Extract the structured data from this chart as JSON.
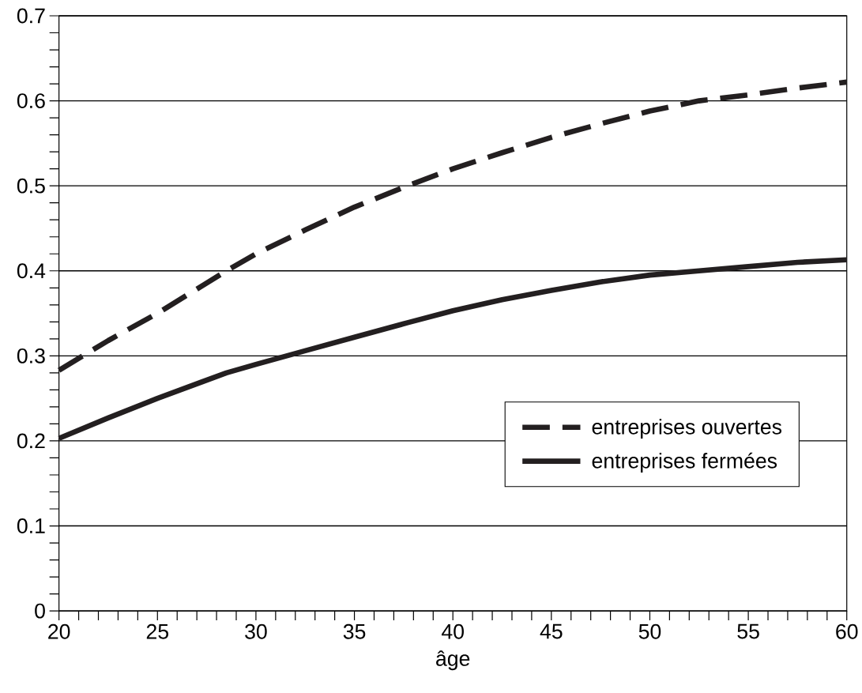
{
  "chart_data": {
    "type": "line",
    "xlabel": "âge",
    "x": [
      20,
      22.5,
      25,
      28.5,
      30,
      32.5,
      35,
      37.7,
      40,
      42.5,
      45,
      47.5,
      50,
      52.5,
      55,
      57.5,
      60
    ],
    "series": [
      {
        "name": "entreprises ouvertes",
        "color": "#231f20",
        "line_style": "dashed",
        "values": [
          0.283,
          0.318,
          0.35,
          0.4,
          0.42,
          0.448,
          0.475,
          0.5,
          0.52,
          0.539,
          0.557,
          0.573,
          0.588,
          0.6,
          0.607,
          0.615,
          0.622
        ]
      },
      {
        "name": "entreprises fermées",
        "color": "#231f20",
        "line_style": "solid",
        "values": [
          0.203,
          0.227,
          0.25,
          0.28,
          0.29,
          0.306,
          0.322,
          0.339,
          0.353,
          0.366,
          0.377,
          0.387,
          0.395,
          0.4,
          0.405,
          0.41,
          0.413
        ]
      }
    ],
    "xlim": [
      20,
      60
    ],
    "xticks": [
      20,
      {
        "value": 21,
        "label": null
      },
      {
        "value": 22,
        "label": null
      },
      {
        "value": 23,
        "label": null
      },
      {
        "value": 24,
        "label": null
      },
      25,
      {
        "value": 26,
        "label": null
      },
      {
        "value": 27,
        "label": null
      },
      {
        "value": 28,
        "label": null
      },
      {
        "value": 29,
        "label": null
      },
      30,
      {
        "value": 31,
        "label": null
      },
      {
        "value": 32,
        "label": null
      },
      {
        "value": 33,
        "label": null
      },
      {
        "value": 34,
        "label": null
      },
      35,
      {
        "value": 36,
        "label": null
      },
      {
        "value": 37,
        "label": null
      },
      {
        "value": 38,
        "label": null
      },
      {
        "value": 39,
        "label": null
      },
      40,
      {
        "value": 41,
        "label": null
      },
      {
        "value": 42,
        "label": null
      },
      {
        "value": 43,
        "label": null
      },
      {
        "value": 44,
        "label": null
      },
      45,
      {
        "value": 46,
        "label": null
      },
      {
        "value": 47,
        "label": null
      },
      {
        "value": 48,
        "label": null
      },
      {
        "value": 49,
        "label": null
      },
      50,
      {
        "value": 51,
        "label": null
      },
      {
        "value": 52,
        "label": null
      },
      {
        "value": 53,
        "label": null
      },
      {
        "value": 54,
        "label": null
      },
      55,
      {
        "value": 56,
        "label": null
      },
      {
        "value": 57,
        "label": null
      },
      {
        "value": 58,
        "label": null
      },
      {
        "value": 59,
        "label": null
      },
      60
    ],
    "ylim": [
      0,
      0.7
    ],
    "yticks": [
      0,
      {
        "value": 0.02,
        "label": null
      },
      {
        "value": 0.04,
        "label": null
      },
      {
        "value": 0.06,
        "label": null
      },
      {
        "value": 0.08,
        "label": null
      },
      0.1,
      {
        "value": 0.12,
        "label": null
      },
      {
        "value": 0.14,
        "label": null
      },
      {
        "value": 0.16,
        "label": null
      },
      {
        "value": 0.18,
        "label": null
      },
      0.2,
      {
        "value": 0.22,
        "label": null
      },
      {
        "value": 0.24,
        "label": null
      },
      {
        "value": 0.26,
        "label": null
      },
      {
        "value": 0.28,
        "label": null
      },
      0.3,
      {
        "value": 0.32,
        "label": null
      },
      {
        "value": 0.34,
        "label": null
      },
      {
        "value": 0.36,
        "label": null
      },
      {
        "value": 0.38,
        "label": null
      },
      0.4,
      {
        "value": 0.42,
        "label": null
      },
      {
        "value": 0.44,
        "label": null
      },
      {
        "value": 0.46,
        "label": null
      },
      {
        "value": 0.48,
        "label": null
      },
      0.5,
      {
        "value": 0.52,
        "label": null
      },
      {
        "value": 0.54,
        "label": null
      },
      {
        "value": 0.56,
        "label": null
      },
      {
        "value": 0.58,
        "label": null
      },
      0.6,
      {
        "value": 0.62,
        "label": null
      },
      {
        "value": 0.64,
        "label": null
      },
      {
        "value": 0.66,
        "label": null
      },
      {
        "value": 0.68,
        "label": null
      },
      0.7
    ],
    "grid": "y",
    "legend": "right",
    "marker": "none"
  }
}
